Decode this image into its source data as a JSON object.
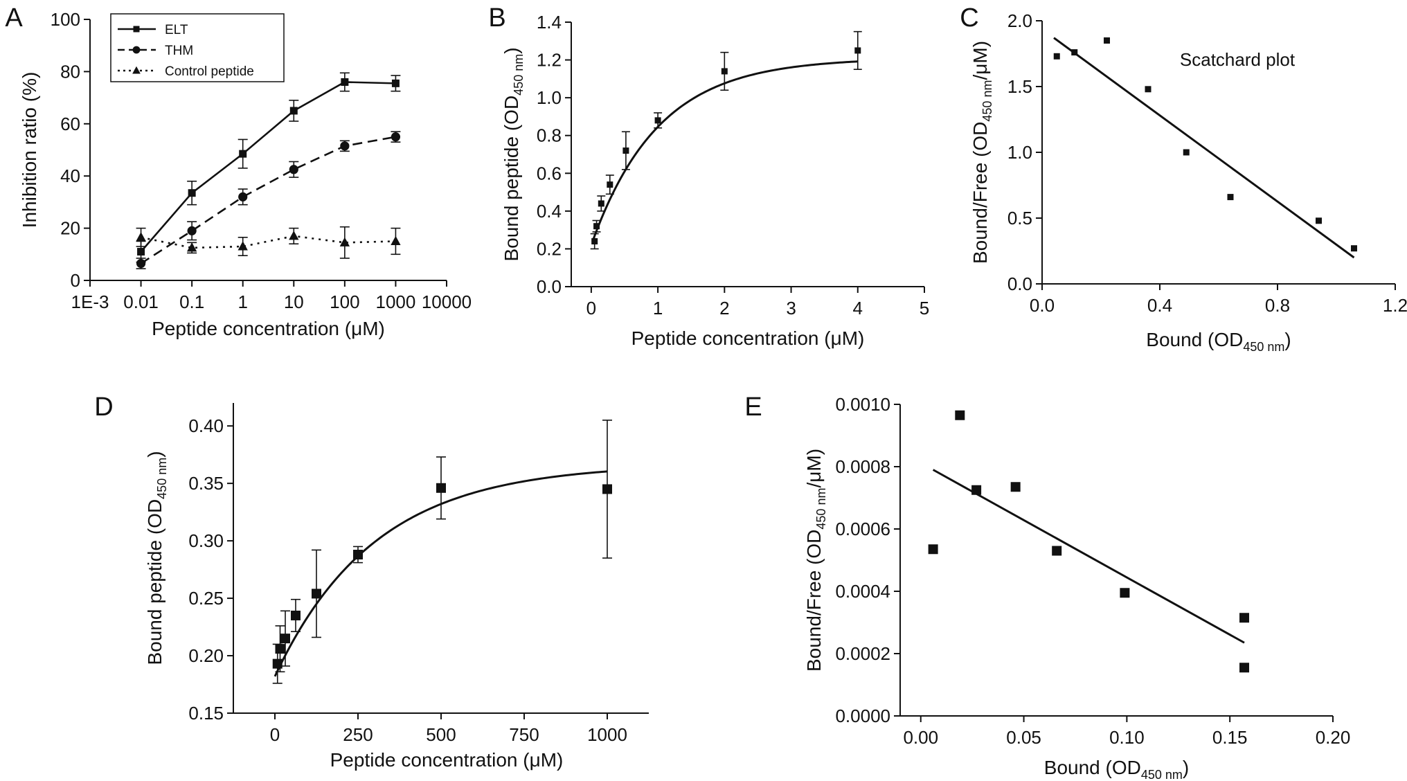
{
  "chart_data": [
    {
      "panel": "A",
      "type": "line",
      "xscale": "log",
      "xlabel": "Peptide concentration (μM)",
      "ylabel": "Inhibition ratio (%)",
      "xlim": [
        0.001,
        10000
      ],
      "ylim": [
        0,
        100
      ],
      "xticks": [
        0.001,
        0.01,
        0.1,
        1,
        10,
        100,
        1000,
        10000
      ],
      "xtick_labels": [
        "1E-3",
        "0.01",
        "0.1",
        "1",
        "10",
        "100",
        "1000",
        "10000"
      ],
      "yticks": [
        0,
        20,
        40,
        60,
        80,
        100
      ],
      "legend_position": "top-left",
      "series": [
        {
          "name": "ELT",
          "style": "solid",
          "marker": "square",
          "x": [
            0.01,
            0.1,
            1,
            10,
            100,
            1000
          ],
          "y": [
            11,
            33.5,
            48.5,
            65,
            76,
            75.5
          ],
          "err": [
            4,
            4.5,
            5.5,
            4,
            3.5,
            3
          ]
        },
        {
          "name": "THM",
          "style": "dashed",
          "marker": "circle",
          "x": [
            0.01,
            0.1,
            1,
            10,
            100,
            1000
          ],
          "y": [
            6.5,
            19,
            32,
            42.5,
            51.5,
            55
          ],
          "err": [
            2,
            3.5,
            3,
            3,
            2,
            2
          ]
        },
        {
          "name": "Control peptide",
          "style": "dotted",
          "marker": "triangle",
          "x": [
            0.01,
            0.1,
            1,
            10,
            100,
            1000
          ],
          "y": [
            16.5,
            12.5,
            13,
            17,
            14.5,
            15
          ],
          "err": [
            3.5,
            2,
            3.5,
            3,
            6,
            5
          ]
        }
      ]
    },
    {
      "panel": "B",
      "type": "scatter",
      "xlabel_main": "Peptide concentration (μM)",
      "ylabel_main": "Bound peptide (OD",
      "ylabel_sub": "450 nm",
      "ylabel_end": ")",
      "xlim": [
        -0.3,
        5
      ],
      "ylim": [
        0,
        1.4
      ],
      "xticks": [
        0,
        1,
        2,
        3,
        4,
        5
      ],
      "xtick_labels": [
        "0",
        "1",
        "2",
        "3",
        "4",
        "5"
      ],
      "ytick_labels": [
        "0.0",
        "0.2",
        "0.4",
        "0.6",
        "0.8",
        "1.0",
        "1.2",
        "1.4"
      ],
      "yticks": [
        0,
        0.2,
        0.4,
        0.6,
        0.8,
        1.0,
        1.2,
        1.4
      ],
      "points": {
        "x": [
          0.05,
          0.08,
          0.15,
          0.28,
          0.52,
          1.0,
          2.0,
          4.0
        ],
        "y": [
          0.24,
          0.32,
          0.44,
          0.54,
          0.72,
          0.88,
          1.14,
          1.25
        ],
        "err": [
          0.04,
          0.03,
          0.04,
          0.05,
          0.1,
          0.04,
          0.1,
          0.1
        ]
      },
      "fit": {
        "model": "saturation",
        "x0": 0.02,
        "x1": 4.0,
        "y0": 0.22,
        "bmax": 0.99,
        "k": 1.0
      }
    },
    {
      "panel": "C",
      "type": "scatter",
      "xlabel_main": "Bound (OD",
      "xlabel_sub": "450 nm",
      "xlabel_end": ")",
      "ylabel_main": "Bound/Free (OD",
      "ylabel_sub": "450 nm",
      "ylabel_end": "/μM)",
      "annotation": "Scatchard plot",
      "xlim": [
        0,
        1.2
      ],
      "ylim": [
        0,
        2.0
      ],
      "xticks": [
        0,
        0.4,
        0.8,
        1.2
      ],
      "xtick_labels": [
        "0.0",
        "0.4",
        "0.8",
        "1.2"
      ],
      "yticks": [
        0,
        0.5,
        1.0,
        1.5,
        2.0
      ],
      "ytick_labels": [
        "0.0",
        "0.5",
        "1.0",
        "1.5",
        "2.0"
      ],
      "points": {
        "x": [
          0.05,
          0.11,
          0.22,
          0.36,
          0.49,
          0.64,
          0.94,
          1.06
        ],
        "y": [
          1.73,
          1.76,
          1.85,
          1.48,
          1.0,
          0.66,
          0.48,
          0.27
        ]
      },
      "fit": {
        "model": "linear",
        "x0": 0.04,
        "x1": 1.06,
        "y0": 1.87,
        "y1": 0.2
      }
    },
    {
      "panel": "D",
      "type": "scatter",
      "xlabel_main": "Peptide concentration (μM)",
      "ylabel_main": "Bound peptide (OD",
      "ylabel_sub": "450 nm",
      "ylabel_end": ")",
      "xlim": [
        -125,
        1125
      ],
      "ylim": [
        0.15,
        0.42
      ],
      "xticks": [
        0,
        250,
        500,
        750,
        1000
      ],
      "xtick_labels": [
        "0",
        "250",
        "500",
        "750",
        "1000"
      ],
      "yticks": [
        0.15,
        0.2,
        0.25,
        0.3,
        0.35,
        0.4
      ],
      "ytick_labels": [
        "0.15",
        "0.20",
        "0.25",
        "0.30",
        "0.35",
        "0.40"
      ],
      "points": {
        "x": [
          15.6,
          31.25,
          62.5,
          125,
          250,
          500,
          1000,
          7.8
        ],
        "y": [
          0.206,
          0.215,
          0.235,
          0.254,
          0.288,
          0.346,
          0.345,
          0.193
        ],
        "err": [
          0.02,
          0.024,
          0.014,
          0.038,
          0.007,
          0.027,
          0.06,
          0.017
        ]
      },
      "fit": {
        "model": "saturation",
        "x0": 0,
        "x1": 1000,
        "y0": 0.182,
        "bmax": 0.185,
        "k": 300
      }
    },
    {
      "panel": "E",
      "type": "scatter",
      "xlabel_main": "Bound (OD",
      "xlabel_sub": "450 nm",
      "xlabel_end": ")",
      "ylabel_main": "Bound/Free (OD",
      "ylabel_sub": "450 nm",
      "ylabel_end": "/μM)",
      "xlim": [
        -0.01,
        0.2
      ],
      "ylim": [
        0,
        0.001
      ],
      "xticks": [
        0,
        0.05,
        0.1,
        0.15,
        0.2
      ],
      "xtick_labels": [
        "0.00",
        "0.05",
        "0.10",
        "0.15",
        "0.20"
      ],
      "yticks": [
        0,
        0.0002,
        0.0004,
        0.0006,
        0.0008,
        0.001
      ],
      "ytick_labels": [
        "0.0000",
        "0.0002",
        "0.0004",
        "0.0006",
        "0.0008",
        "0.0010"
      ],
      "points": {
        "x": [
          0.006,
          0.019,
          0.027,
          0.046,
          0.066,
          0.099,
          0.157,
          0.157
        ],
        "y": [
          0.000535,
          0.000965,
          0.000725,
          0.000735,
          0.00053,
          0.000395,
          0.000315,
          0.000155
        ]
      },
      "fit": {
        "model": "linear",
        "x0": 0.006,
        "x1": 0.157,
        "y0": 0.00079,
        "y1": 0.000235
      }
    }
  ],
  "panel_letters": [
    "A",
    "B",
    "C",
    "D",
    "E"
  ]
}
